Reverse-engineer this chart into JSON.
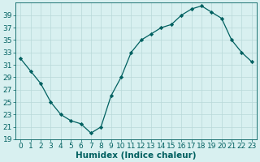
{
  "x": [
    0,
    1,
    2,
    3,
    4,
    5,
    6,
    7,
    8,
    9,
    10,
    11,
    12,
    13,
    14,
    15,
    16,
    17,
    18,
    19,
    20,
    21,
    22,
    23
  ],
  "y": [
    32,
    30,
    28,
    25,
    23,
    22,
    21.5,
    20,
    21,
    26,
    29,
    33,
    35,
    36,
    37,
    37.5,
    39,
    40,
    40.5,
    39.5,
    38.5,
    35,
    33,
    31.5
  ],
  "xlabel": "Humidex (Indice chaleur)",
  "xlim": [
    -0.5,
    23.5
  ],
  "ylim": [
    19,
    41
  ],
  "yticks": [
    19,
    21,
    23,
    25,
    27,
    29,
    31,
    33,
    35,
    37,
    39
  ],
  "xticks": [
    0,
    1,
    2,
    3,
    4,
    5,
    6,
    7,
    8,
    9,
    10,
    11,
    12,
    13,
    14,
    15,
    16,
    17,
    18,
    19,
    20,
    21,
    22,
    23
  ],
  "line_color": "#006060",
  "marker": "D",
  "marker_size": 2.2,
  "background_color": "#d8f0f0",
  "grid_color": "#b8d8d8",
  "label_fontsize": 7.5,
  "tick_fontsize": 6.5
}
